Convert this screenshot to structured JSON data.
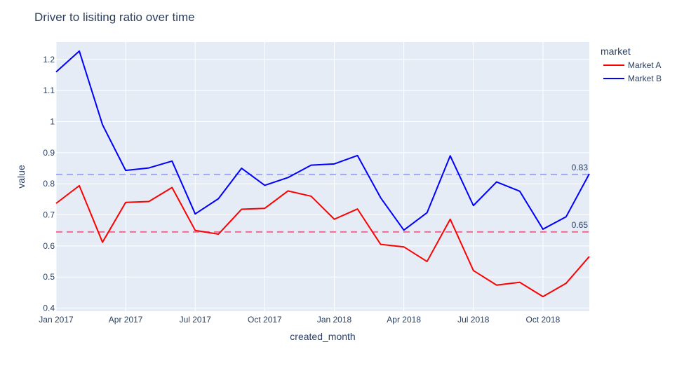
{
  "chart_data": {
    "type": "line",
    "title": "Driver to lisiting ratio over time",
    "xlabel": "created_month",
    "ylabel": "value",
    "legend": {
      "title": "market",
      "position": "top-right"
    },
    "x": [
      "2017-01",
      "2017-02",
      "2017-03",
      "2017-04",
      "2017-05",
      "2017-06",
      "2017-07",
      "2017-08",
      "2017-09",
      "2017-10",
      "2017-11",
      "2017-12",
      "2018-01",
      "2018-02",
      "2018-03",
      "2018-04",
      "2018-05",
      "2018-06",
      "2018-07",
      "2018-08",
      "2018-09",
      "2018-10",
      "2018-11",
      "2018-12"
    ],
    "series": [
      {
        "name": "Market A",
        "color": "#ff0000",
        "values": [
          0.737,
          0.794,
          0.612,
          0.74,
          0.743,
          0.788,
          0.65,
          0.638,
          0.718,
          0.721,
          0.777,
          0.76,
          0.686,
          0.719,
          0.605,
          0.597,
          0.55,
          0.686,
          0.521,
          0.474,
          0.483,
          0.437,
          0.48,
          0.566
        ]
      },
      {
        "name": "Market B",
        "color": "#0000ff",
        "values": [
          1.16,
          1.227,
          0.99,
          0.843,
          0.851,
          0.873,
          0.703,
          0.752,
          0.85,
          0.795,
          0.82,
          0.86,
          0.864,
          0.891,
          0.755,
          0.651,
          0.707,
          0.89,
          0.73,
          0.806,
          0.776,
          0.654,
          0.694,
          0.832
        ]
      }
    ],
    "reference_lines": [
      {
        "value": 0.83,
        "label": "0.83",
        "color": "#a0a8f2",
        "style": "dashed"
      },
      {
        "value": 0.645,
        "label": "0.65",
        "color": "#f06a92",
        "style": "dashed"
      }
    ],
    "xticks": [
      {
        "at": "2017-01",
        "label": "Jan 2017"
      },
      {
        "at": "2017-04",
        "label": "Apr 2017"
      },
      {
        "at": "2017-07",
        "label": "Jul 2017"
      },
      {
        "at": "2017-10",
        "label": "Oct 2017"
      },
      {
        "at": "2018-01",
        "label": "Jan 2018"
      },
      {
        "at": "2018-04",
        "label": "Apr 2018"
      },
      {
        "at": "2018-07",
        "label": "Jul 2018"
      },
      {
        "at": "2018-10",
        "label": "Oct 2018"
      }
    ],
    "yticks": [
      {
        "value": 0.4,
        "label": "0.4"
      },
      {
        "value": 0.5,
        "label": "0.5"
      },
      {
        "value": 0.6,
        "label": "0.6"
      },
      {
        "value": 0.7,
        "label": "0.7"
      },
      {
        "value": 0.8,
        "label": "0.8"
      },
      {
        "value": 0.9,
        "label": "0.9"
      },
      {
        "value": 1.0,
        "label": "1"
      },
      {
        "value": 1.1,
        "label": "1.1"
      },
      {
        "value": 1.2,
        "label": "1.2"
      }
    ],
    "ylim": [
      0.39,
      1.256
    ],
    "xlim": [
      "2017-01",
      "2018-12"
    ],
    "grid": true,
    "plot_background": "#e5ecf6"
  }
}
